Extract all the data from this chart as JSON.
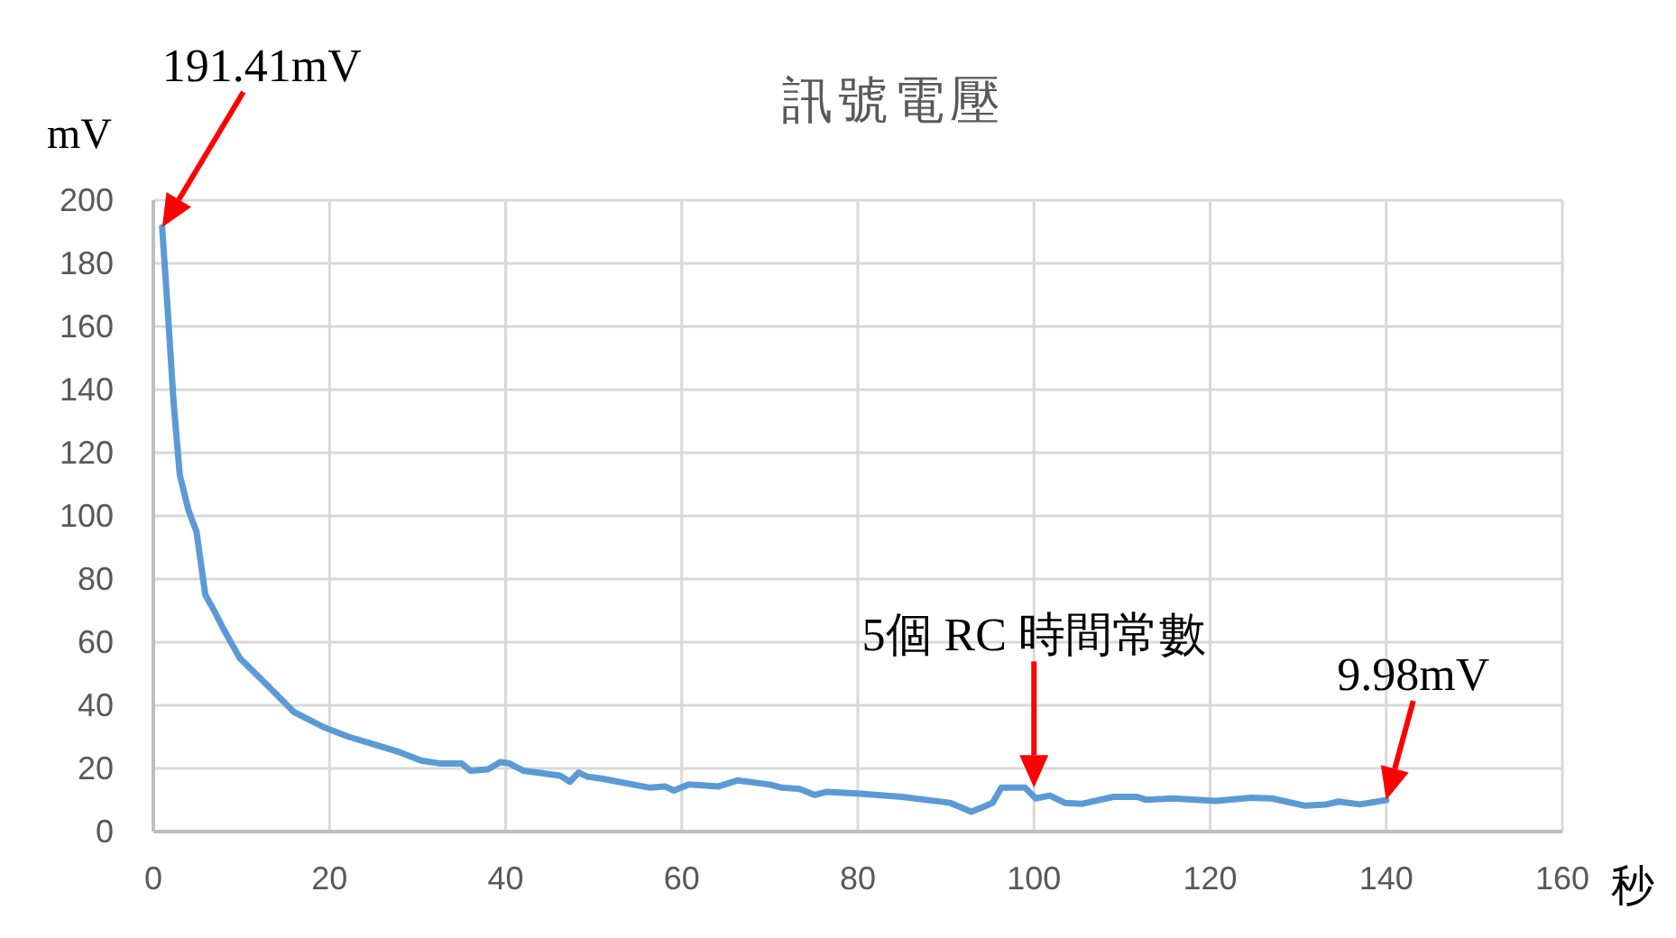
{
  "chart_data": {
    "type": "line",
    "title": "訊號電壓",
    "xlabel": "秒",
    "ylabel": "mV",
    "xlim": [
      0,
      160
    ],
    "ylim": [
      0,
      200
    ],
    "xticks": [
      0,
      20,
      40,
      60,
      80,
      100,
      120,
      140,
      160
    ],
    "yticks": [
      0,
      20,
      40,
      60,
      80,
      100,
      120,
      140,
      160,
      180,
      200
    ],
    "grid": true,
    "series": [
      {
        "color": "#5b9bd5",
        "x": [
          1,
          1.6,
          2.3,
          3,
          4,
          4.9,
          5.9,
          6.9,
          7.9,
          9.8,
          12.6,
          16,
          19.4,
          22.2,
          25,
          27.7,
          30.4,
          32.5,
          35,
          36,
          38,
          39.4,
          40.4,
          42,
          46.2,
          47.3,
          48.3,
          49.3,
          50.9,
          56.4,
          58.1,
          59.1,
          60.8,
          64.2,
          66.3,
          70,
          71.4,
          73.4,
          75.1,
          76.5,
          80.3,
          85,
          90.5,
          92.9,
          94.6,
          95.3,
          96.3,
          99,
          100.2,
          101.8,
          103.5,
          105.5,
          109,
          111.7,
          112.7,
          115.8,
          120.6,
          124.7,
          127,
          130.8,
          133.2,
          134.6,
          137,
          140
        ],
        "values": [
          191.41,
          166.6,
          136,
          113,
          101.7,
          95,
          75,
          70,
          64.5,
          55,
          47.3,
          37.8,
          33,
          30,
          27.7,
          25.4,
          22.5,
          21.6,
          21.6,
          19.3,
          19.7,
          22,
          21.6,
          19.3,
          17.7,
          15.8,
          18.7,
          17.4,
          16.8,
          13.9,
          14.3,
          13,
          14.9,
          14.3,
          16.2,
          14.9,
          13.9,
          13.5,
          11.6,
          12.6,
          12,
          11,
          9.1,
          6.3,
          8.2,
          9.1,
          13.9,
          13.9,
          10.5,
          11.4,
          9.1,
          8.8,
          11,
          11,
          10.1,
          10.5,
          9.7,
          10.7,
          10.5,
          8.2,
          8.6,
          9.5,
          8.6,
          9.98
        ]
      }
    ],
    "annotations": [
      {
        "text": "191.41mV",
        "x": 1,
        "y": 191.41
      },
      {
        "text": "5個 RC 時間常數",
        "x": 100,
        "y": 13.9
      },
      {
        "text": "9.98mV",
        "x": 140,
        "y": 9.98
      }
    ]
  }
}
